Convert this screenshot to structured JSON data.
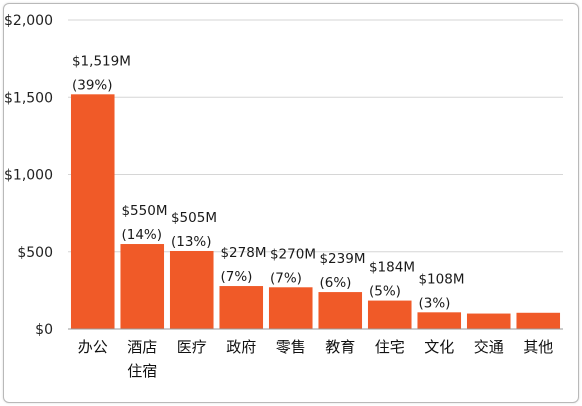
{
  "chart_data": {
    "type": "bar",
    "categories": [
      "办公",
      "酒店住宿",
      "医疗",
      "政府",
      "零售",
      "教育",
      "住宅",
      "文化",
      "交通",
      "其他"
    ],
    "category_lines": [
      [
        "办公"
      ],
      [
        "酒店",
        "住宿"
      ],
      [
        "医疗"
      ],
      [
        "政府"
      ],
      [
        "零售"
      ],
      [
        "教育"
      ],
      [
        "住宅"
      ],
      [
        "文化"
      ],
      [
        "交通"
      ],
      [
        "其他"
      ]
    ],
    "values": [
      1519,
      550,
      505,
      278,
      270,
      239,
      184,
      108,
      100,
      105
    ],
    "value_labels": [
      "$1,519M",
      "$550M",
      "$505M",
      "$278M",
      "$270M",
      "$239M",
      "$184M",
      "$108M",
      "",
      ""
    ],
    "percent_labels": [
      "(39%)",
      "(14%)",
      "(13%)",
      "(7%)",
      "(7%)",
      "(6%)",
      "(5%)",
      "(3%)",
      "",
      ""
    ],
    "yticks": [
      0,
      500,
      1000,
      1500,
      2000
    ],
    "ytick_labels": [
      "$0",
      "$500",
      "$1,000",
      "$1,500",
      "$2,000"
    ],
    "ylim": [
      0,
      2000
    ],
    "title": "",
    "xlabel": "",
    "ylabel": "",
    "grid": true,
    "legend": "none",
    "bar_color": "#f05a28"
  }
}
